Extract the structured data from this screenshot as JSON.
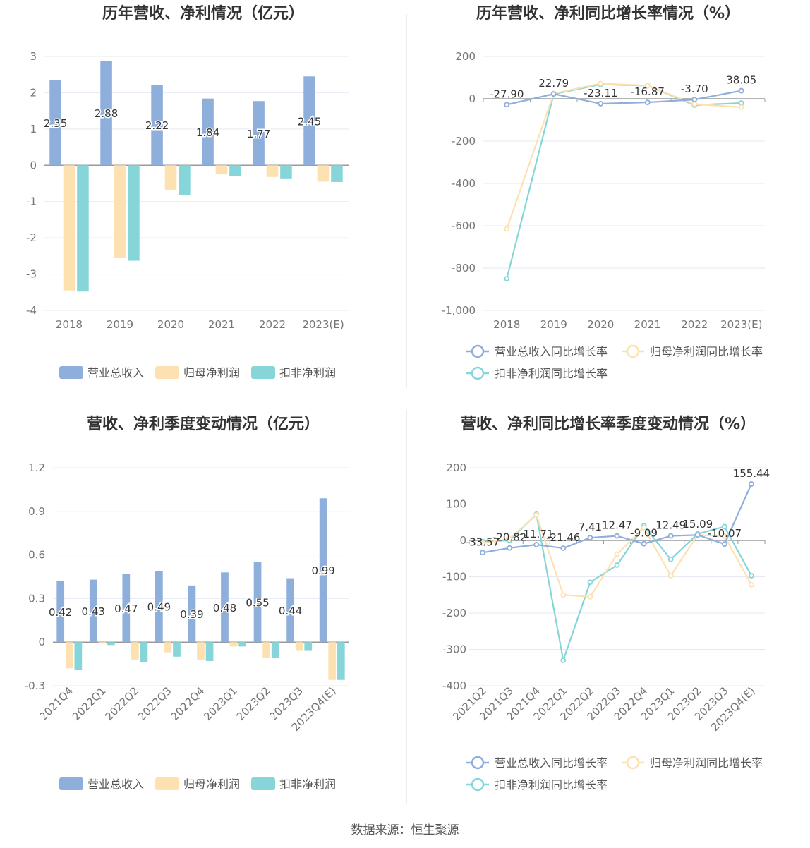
{
  "source_text": "数据来源：恒生聚源",
  "colors": {
    "revenue": "#8eaedc",
    "parent_profit": "#fde1b0",
    "deducted_profit": "#86d6d9",
    "axis_text": "#757575",
    "title": "#333333",
    "grid": "#e6e9f2",
    "label": "#333333"
  },
  "chart_data": [
    {
      "type": "bar",
      "title": "历年营收、净利情况（亿元）",
      "categories": [
        "2018",
        "2019",
        "2020",
        "2021",
        "2022",
        "2023(E)"
      ],
      "ylim": [
        -4,
        3
      ],
      "yticks": [
        3,
        2,
        1,
        0,
        -1,
        -2,
        -3,
        -4
      ],
      "ytick_labels": [
        "3",
        "2",
        "1",
        "0",
        "-1",
        "-2",
        "-3",
        "-4"
      ],
      "label_series": 0,
      "series": [
        {
          "name": "营业总收入",
          "values": [
            2.35,
            2.88,
            2.22,
            1.84,
            1.77,
            2.45
          ],
          "labels": [
            "2.35",
            "2.88",
            "2.22",
            "1.84",
            "1.77",
            "2.45"
          ]
        },
        {
          "name": "归母净利润",
          "values": [
            -3.45,
            -2.55,
            -0.68,
            -0.25,
            -0.32,
            -0.45
          ]
        },
        {
          "name": "扣非净利润",
          "values": [
            -3.48,
            -2.63,
            -0.83,
            -0.3,
            -0.38,
            -0.46
          ]
        }
      ],
      "legend": [
        "营业总收入",
        "归母净利润",
        "扣非净利润"
      ],
      "grid": true
    },
    {
      "type": "line",
      "title": "历年营收、净利同比增长率情况（%）",
      "categories": [
        "2018",
        "2019",
        "2020",
        "2021",
        "2022",
        "2023(E)"
      ],
      "ylim": [
        -1000,
        200
      ],
      "yticks": [
        200,
        0,
        -200,
        -400,
        -600,
        -800,
        -1000
      ],
      "ytick_labels": [
        "200",
        "0",
        "-200",
        "-400",
        "-600",
        "-800",
        "-1,000"
      ],
      "label_series": 0,
      "series": [
        {
          "name": "营业总收入同比增长率",
          "values": [
            -27.9,
            22.79,
            -23.11,
            -16.87,
            -3.7,
            38.05
          ],
          "labels": [
            "-27.90",
            "22.79",
            "-23.11",
            "-16.87",
            "-3.70",
            "38.05"
          ]
        },
        {
          "name": "归母净利润同比增长率",
          "values": [
            -615,
            25,
            72,
            62,
            -25,
            -40
          ]
        },
        {
          "name": "扣非净利润同比增长率",
          "values": [
            -850,
            22,
            68,
            62,
            -30,
            -20
          ]
        }
      ],
      "legend": [
        "营业总收入同比增长率",
        "归母净利润同比增长率",
        "扣非净利润同比增长率"
      ],
      "grid": true
    },
    {
      "type": "bar",
      "title": "营收、净利季度变动情况（亿元）",
      "categories": [
        "2021Q4",
        "2022Q1",
        "2022Q2",
        "2022Q3",
        "2022Q4",
        "2023Q1",
        "2023Q2",
        "2023Q3",
        "2023Q4(E)"
      ],
      "ylim": [
        -0.3,
        1.2
      ],
      "yticks": [
        1.2,
        0.9,
        0.6,
        0.3,
        0,
        -0.3
      ],
      "ytick_labels": [
        "1.2",
        "0.9",
        "0.6",
        "0.3",
        "0",
        "-0.3"
      ],
      "label_series": 0,
      "series": [
        {
          "name": "营业总收入",
          "values": [
            0.42,
            0.43,
            0.47,
            0.49,
            0.39,
            0.48,
            0.55,
            0.44,
            0.99
          ],
          "labels": [
            "0.42",
            "0.43",
            "0.47",
            "0.49",
            "0.39",
            "0.48",
            "0.55",
            "0.44",
            "0.99"
          ]
        },
        {
          "name": "归母净利润",
          "values": [
            -0.18,
            -0.01,
            -0.12,
            -0.07,
            -0.12,
            -0.03,
            -0.11,
            -0.06,
            -0.26
          ]
        },
        {
          "name": "扣非净利润",
          "values": [
            -0.19,
            -0.02,
            -0.14,
            -0.1,
            -0.13,
            -0.03,
            -0.11,
            -0.06,
            -0.26
          ]
        }
      ],
      "legend": [
        "营业总收入",
        "归母净利润",
        "扣非净利润"
      ],
      "grid": true
    },
    {
      "type": "line",
      "title": "营收、净利同比增长率季度变动情况（%）",
      "categories": [
        "2021Q2",
        "2021Q3",
        "2021Q4",
        "2022Q1",
        "2022Q2",
        "2022Q3",
        "2022Q4",
        "2023Q1",
        "2023Q2",
        "2023Q3",
        "2023Q4(E)"
      ],
      "ylim": [
        -400,
        200
      ],
      "yticks": [
        200,
        100,
        0,
        -100,
        -200,
        -300,
        -400
      ],
      "ytick_labels": [
        "200",
        "100",
        "0",
        "-100",
        "-200",
        "-300",
        "-400"
      ],
      "label_series": 0,
      "series": [
        {
          "name": "营业总收入同比增长率",
          "values": [
            -33.57,
            -20.82,
            -11.71,
            -21.46,
            7.41,
            12.47,
            -9.09,
            12.49,
            15.09,
            -10.07,
            155.44
          ],
          "labels": [
            "-33.57",
            "-20.82",
            "-11.71",
            "-21.46",
            "7.41",
            "12.47",
            "-9.09",
            "12.49",
            "15.09",
            "-10.07",
            "155.44"
          ]
        },
        {
          "name": "归母净利润同比增长率",
          "values": [
            -8,
            5,
            70,
            -150,
            -155,
            -38,
            35,
            -97,
            15,
            12,
            -122
          ]
        },
        {
          "name": "扣非净利润同比增长率",
          "values": [
            -3,
            0,
            72,
            -330,
            -115,
            -68,
            40,
            -52,
            18,
            38,
            -97
          ]
        }
      ],
      "legend": [
        "营业总收入同比增长率",
        "归母净利润同比增长率",
        "扣非净利润同比增长率"
      ],
      "grid": true
    }
  ]
}
